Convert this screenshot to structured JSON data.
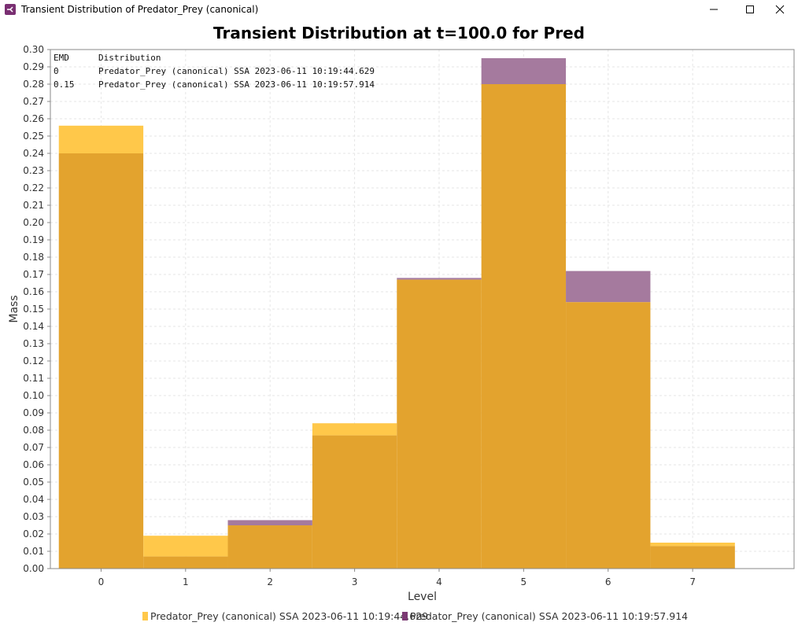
{
  "window": {
    "title": "Transient Distribution of Predator_Prey (canonical)",
    "minimize_icon": "minimize-icon",
    "maximize_icon": "maximize-icon",
    "close_icon": "close-icon"
  },
  "chart_data": {
    "type": "bar",
    "title": "Transient Distribution at t=100.0 for Pred",
    "xlabel": "Level",
    "ylabel": "Mass",
    "categories": [
      "0",
      "1",
      "2",
      "3",
      "4",
      "5",
      "6",
      "7"
    ],
    "ylim": [
      0,
      0.3
    ],
    "y_ticks": [
      "0.00",
      "0.01",
      "0.02",
      "0.03",
      "0.04",
      "0.05",
      "0.06",
      "0.07",
      "0.08",
      "0.09",
      "0.10",
      "0.11",
      "0.12",
      "0.13",
      "0.14",
      "0.15",
      "0.16",
      "0.17",
      "0.18",
      "0.19",
      "0.20",
      "0.21",
      "0.22",
      "0.23",
      "0.24",
      "0.25",
      "0.26",
      "0.27",
      "0.28",
      "0.29",
      "0.30"
    ],
    "grid": true,
    "series": [
      {
        "name": "Predator_Prey (canonical) SSA 2023-06-11 10:19:44.629",
        "color": "#ffc84a",
        "values": [
          0.256,
          0.019,
          0.025,
          0.084,
          0.167,
          0.28,
          0.154,
          0.015
        ]
      },
      {
        "name": "Predator_Prey (canonical) SSA 2023-06-11 10:19:57.914",
        "color": "#a57a9e",
        "values": [
          0.24,
          0.007,
          0.028,
          0.077,
          0.168,
          0.295,
          0.172,
          0.013
        ]
      }
    ],
    "overlap_color": "#e3a32e",
    "emd_table": {
      "headers": [
        "EMD",
        "Distribution"
      ],
      "rows": [
        [
          "0",
          "Predator_Prey (canonical) SSA 2023-06-11 10:19:44.629"
        ],
        [
          "0.15",
          "Predator_Prey (canonical) SSA 2023-06-11 10:19:57.914"
        ]
      ]
    },
    "legend_position": "bottom"
  }
}
